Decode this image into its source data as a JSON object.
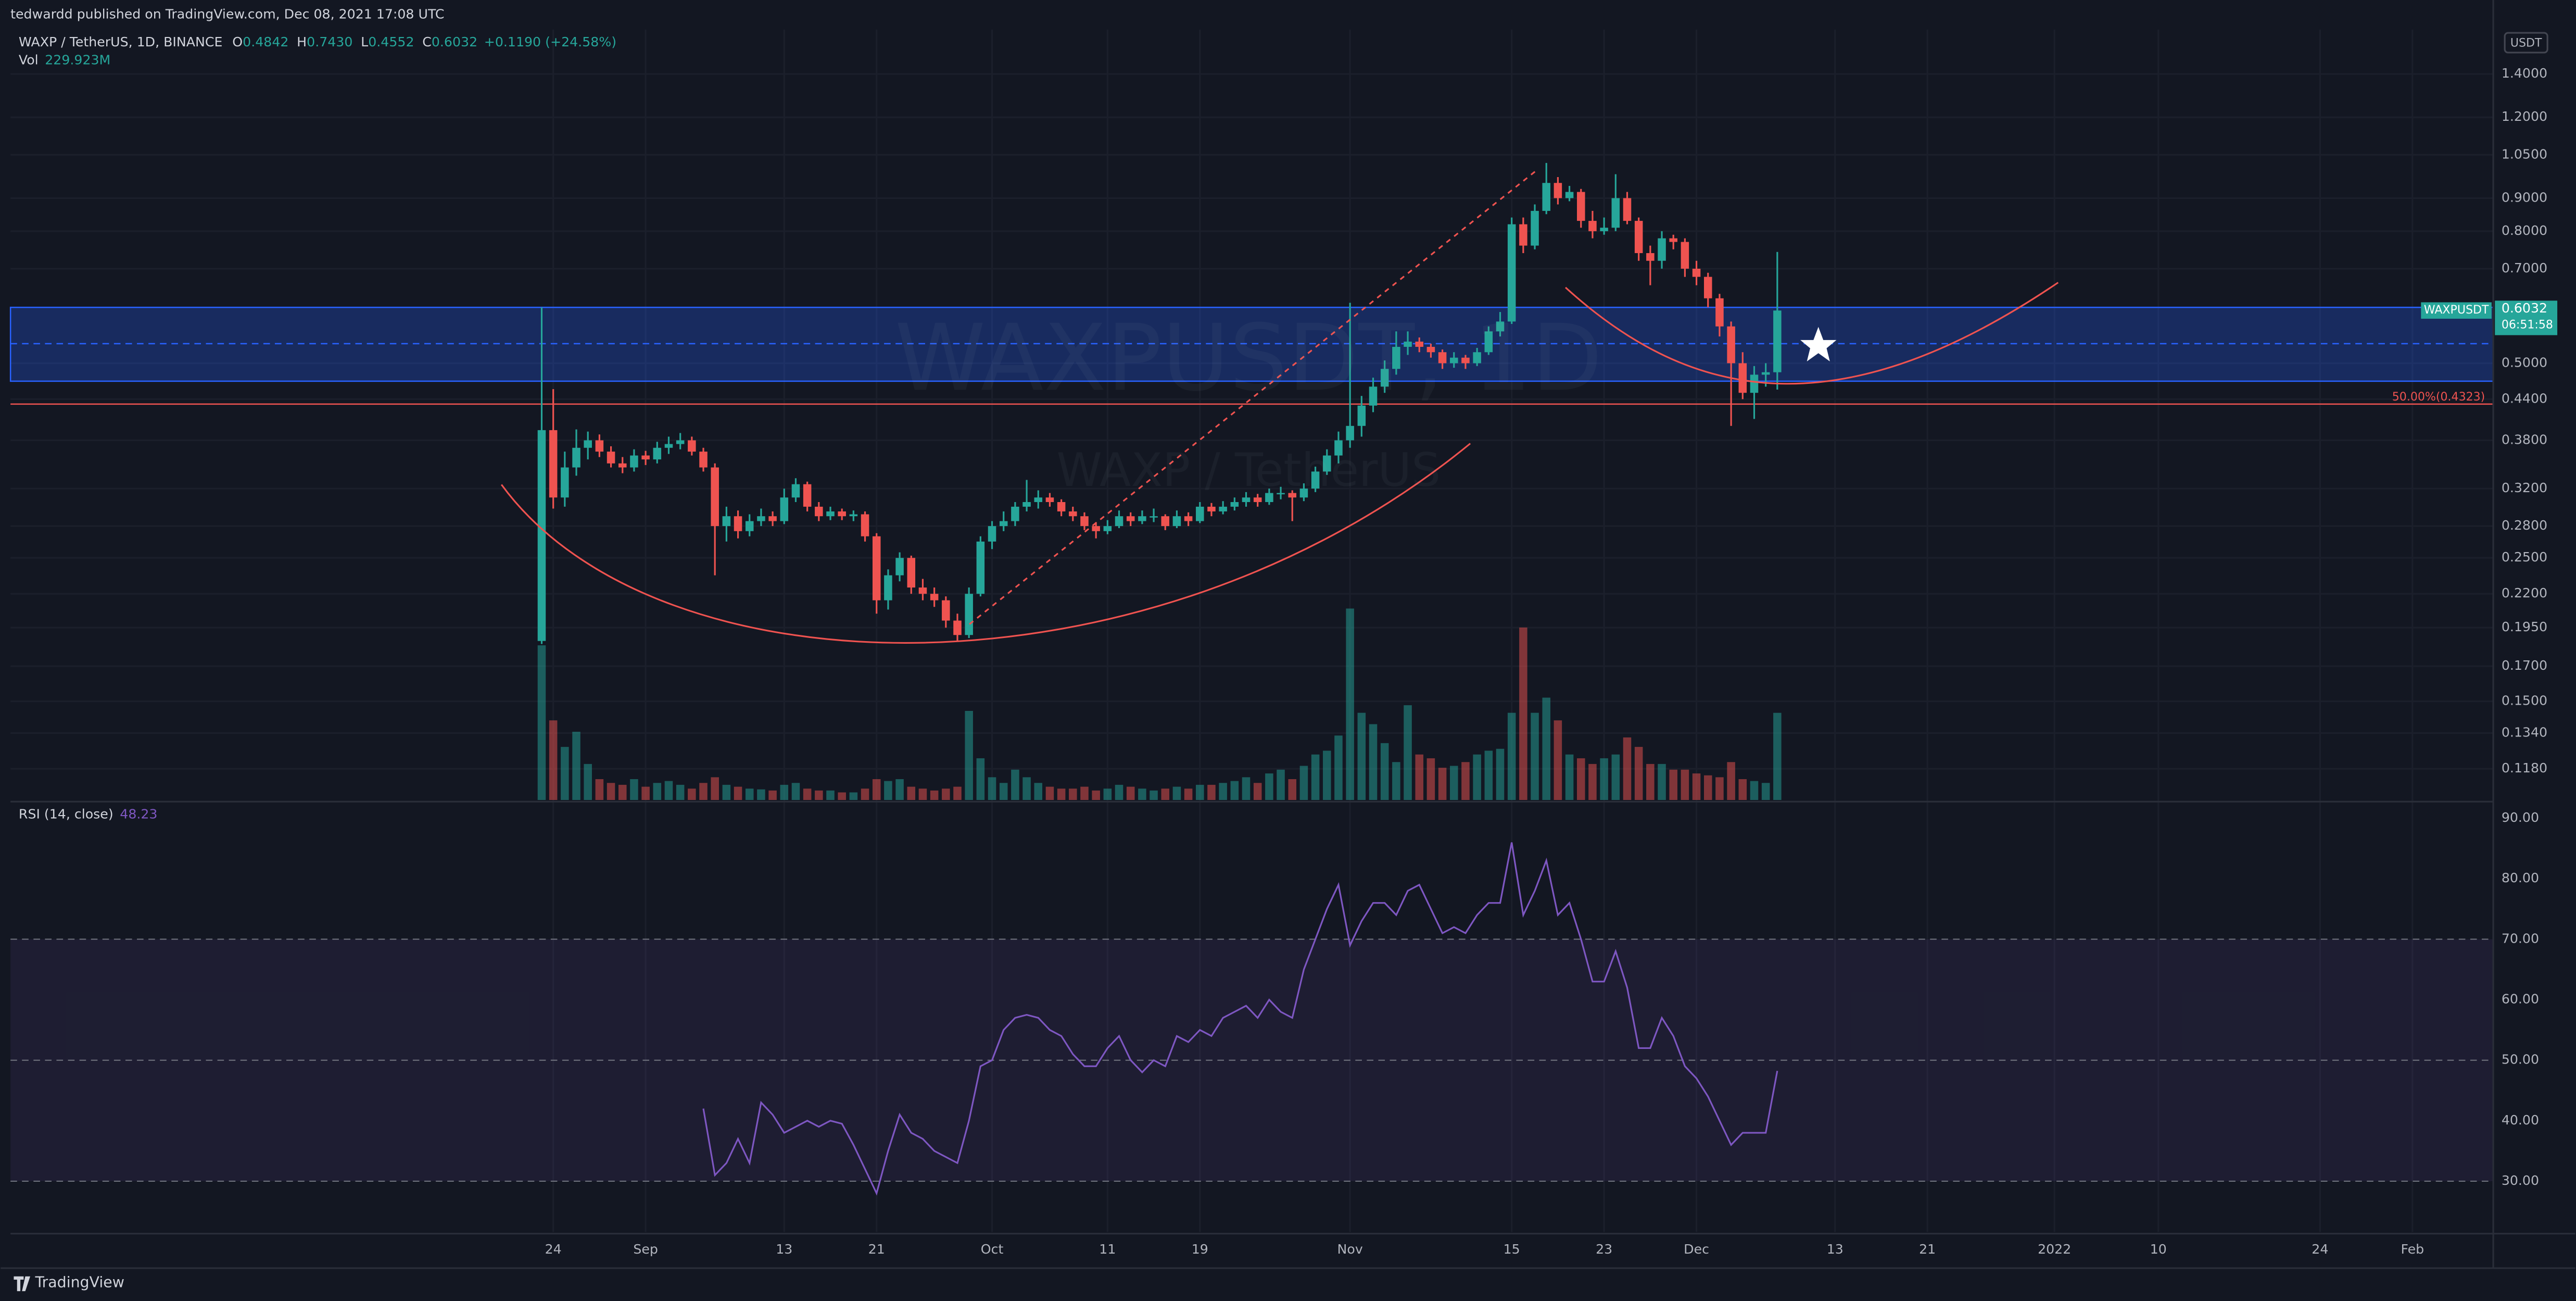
{
  "header": {
    "author": "tedwardd published on TradingView.com, Dec 08, 2021 17:08 UTC",
    "brand": "TradingView"
  },
  "chart_data": {
    "type": "candlestick",
    "title": "WAXP / TetherUS, 1D, BINANCE",
    "symbol": "WAXPUSDT",
    "watermark": "WAXPUSDT, 1D",
    "watermark_sub": "WAXP / TetherUS",
    "currency": "USDT",
    "countdown": "06:51:58",
    "ohlc_names": [
      "O",
      "H",
      "L",
      "C"
    ],
    "last_ohlc_labels": [
      "0.4842",
      "0.7430",
      "0.4552",
      "0.6032"
    ],
    "change": "+0.1190 (+24.58%)",
    "volume_name": "Vol",
    "volume_last_label": "229.923M",
    "rsi_name": "RSI (14, close)",
    "up_color": "#26a69a",
    "down_color": "#ef5350",
    "rsi_color": "#7e57c2",
    "log": true,
    "grid": true,
    "x": [
      "2021-08-23",
      "2021-08-24",
      "2021-08-25",
      "2021-08-26",
      "2021-08-27",
      "2021-08-28",
      "2021-08-29",
      "2021-08-30",
      "2021-08-31",
      "2021-09-01",
      "2021-09-02",
      "2021-09-03",
      "2021-09-04",
      "2021-09-05",
      "2021-09-06",
      "2021-09-07",
      "2021-09-08",
      "2021-09-09",
      "2021-09-10",
      "2021-09-11",
      "2021-09-12",
      "2021-09-13",
      "2021-09-14",
      "2021-09-15",
      "2021-09-16",
      "2021-09-17",
      "2021-09-18",
      "2021-09-19",
      "2021-09-20",
      "2021-09-21",
      "2021-09-22",
      "2021-09-23",
      "2021-09-24",
      "2021-09-25",
      "2021-09-26",
      "2021-09-27",
      "2021-09-28",
      "2021-09-29",
      "2021-09-30",
      "2021-10-01",
      "2021-10-02",
      "2021-10-03",
      "2021-10-04",
      "2021-10-05",
      "2021-10-06",
      "2021-10-07",
      "2021-10-08",
      "2021-10-09",
      "2021-10-10",
      "2021-10-11",
      "2021-10-12",
      "2021-10-13",
      "2021-10-14",
      "2021-10-15",
      "2021-10-16",
      "2021-10-17",
      "2021-10-18",
      "2021-10-19",
      "2021-10-20",
      "2021-10-21",
      "2021-10-22",
      "2021-10-23",
      "2021-10-24",
      "2021-10-25",
      "2021-10-26",
      "2021-10-27",
      "2021-10-28",
      "2021-10-29",
      "2021-10-30",
      "2021-10-31",
      "2021-11-01",
      "2021-11-02",
      "2021-11-03",
      "2021-11-04",
      "2021-11-05",
      "2021-11-06",
      "2021-11-07",
      "2021-11-08",
      "2021-11-09",
      "2021-11-10",
      "2021-11-11",
      "2021-11-12",
      "2021-11-13",
      "2021-11-14",
      "2021-11-15",
      "2021-11-16",
      "2021-11-17",
      "2021-11-18",
      "2021-11-19",
      "2021-11-20",
      "2021-11-21",
      "2021-11-22",
      "2021-11-23",
      "2021-11-24",
      "2021-11-25",
      "2021-11-26",
      "2021-11-27",
      "2021-11-28",
      "2021-11-29",
      "2021-11-30",
      "2021-12-01",
      "2021-12-02",
      "2021-12-03",
      "2021-12-04",
      "2021-12-05",
      "2021-12-06",
      "2021-12-07",
      "2021-12-08"
    ],
    "ohlc": [
      [
        0.186,
        0.61,
        0.184,
        0.394
      ],
      [
        0.394,
        0.456,
        0.298,
        0.31
      ],
      [
        0.31,
        0.365,
        0.3,
        0.345
      ],
      [
        0.345,
        0.395,
        0.335,
        0.37
      ],
      [
        0.37,
        0.392,
        0.355,
        0.38
      ],
      [
        0.38,
        0.388,
        0.358,
        0.365
      ],
      [
        0.365,
        0.372,
        0.345,
        0.35
      ],
      [
        0.35,
        0.358,
        0.338,
        0.345
      ],
      [
        0.345,
        0.368,
        0.34,
        0.36
      ],
      [
        0.36,
        0.366,
        0.348,
        0.355
      ],
      [
        0.355,
        0.378,
        0.35,
        0.37
      ],
      [
        0.37,
        0.385,
        0.362,
        0.375
      ],
      [
        0.375,
        0.39,
        0.368,
        0.38
      ],
      [
        0.38,
        0.385,
        0.36,
        0.365
      ],
      [
        0.365,
        0.37,
        0.34,
        0.345
      ],
      [
        0.345,
        0.35,
        0.235,
        0.28
      ],
      [
        0.28,
        0.3,
        0.265,
        0.29
      ],
      [
        0.29,
        0.296,
        0.268,
        0.275
      ],
      [
        0.275,
        0.292,
        0.27,
        0.285
      ],
      [
        0.285,
        0.298,
        0.28,
        0.29
      ],
      [
        0.29,
        0.295,
        0.28,
        0.285
      ],
      [
        0.285,
        0.32,
        0.282,
        0.31
      ],
      [
        0.31,
        0.332,
        0.305,
        0.325
      ],
      [
        0.325,
        0.328,
        0.295,
        0.3
      ],
      [
        0.3,
        0.305,
        0.285,
        0.29
      ],
      [
        0.29,
        0.3,
        0.286,
        0.295
      ],
      [
        0.295,
        0.298,
        0.286,
        0.29
      ],
      [
        0.29,
        0.296,
        0.285,
        0.292
      ],
      [
        0.292,
        0.295,
        0.265,
        0.27
      ],
      [
        0.27,
        0.273,
        0.205,
        0.215
      ],
      [
        0.215,
        0.24,
        0.208,
        0.235
      ],
      [
        0.235,
        0.255,
        0.23,
        0.25
      ],
      [
        0.25,
        0.252,
        0.22,
        0.225
      ],
      [
        0.225,
        0.232,
        0.215,
        0.22
      ],
      [
        0.22,
        0.225,
        0.21,
        0.215
      ],
      [
        0.215,
        0.218,
        0.195,
        0.2
      ],
      [
        0.2,
        0.205,
        0.186,
        0.19
      ],
      [
        0.19,
        0.225,
        0.188,
        0.22
      ],
      [
        0.22,
        0.27,
        0.218,
        0.265
      ],
      [
        0.265,
        0.285,
        0.258,
        0.28
      ],
      [
        0.28,
        0.295,
        0.275,
        0.285
      ],
      [
        0.285,
        0.305,
        0.28,
        0.3
      ],
      [
        0.3,
        0.33,
        0.295,
        0.305
      ],
      [
        0.305,
        0.318,
        0.298,
        0.31
      ],
      [
        0.31,
        0.315,
        0.3,
        0.305
      ],
      [
        0.305,
        0.308,
        0.29,
        0.295
      ],
      [
        0.295,
        0.3,
        0.285,
        0.29
      ],
      [
        0.29,
        0.294,
        0.276,
        0.28
      ],
      [
        0.28,
        0.284,
        0.268,
        0.275
      ],
      [
        0.275,
        0.286,
        0.272,
        0.28
      ],
      [
        0.28,
        0.296,
        0.278,
        0.29
      ],
      [
        0.29,
        0.294,
        0.28,
        0.285
      ],
      [
        0.285,
        0.296,
        0.282,
        0.29
      ],
      [
        0.29,
        0.298,
        0.284,
        0.29
      ],
      [
        0.29,
        0.292,
        0.276,
        0.28
      ],
      [
        0.28,
        0.296,
        0.278,
        0.29
      ],
      [
        0.29,
        0.294,
        0.28,
        0.285
      ],
      [
        0.285,
        0.305,
        0.283,
        0.3
      ],
      [
        0.3,
        0.304,
        0.29,
        0.295
      ],
      [
        0.295,
        0.306,
        0.292,
        0.3
      ],
      [
        0.3,
        0.31,
        0.296,
        0.305
      ],
      [
        0.305,
        0.316,
        0.3,
        0.31
      ],
      [
        0.31,
        0.314,
        0.3,
        0.305
      ],
      [
        0.305,
        0.32,
        0.302,
        0.315
      ],
      [
        0.315,
        0.322,
        0.308,
        0.315
      ],
      [
        0.315,
        0.318,
        0.285,
        0.31
      ],
      [
        0.31,
        0.326,
        0.306,
        0.32
      ],
      [
        0.32,
        0.346,
        0.316,
        0.34
      ],
      [
        0.34,
        0.368,
        0.336,
        0.36
      ],
      [
        0.36,
        0.392,
        0.35,
        0.38
      ],
      [
        0.38,
        0.62,
        0.37,
        0.4
      ],
      [
        0.4,
        0.445,
        0.385,
        0.43
      ],
      [
        0.43,
        0.475,
        0.42,
        0.46
      ],
      [
        0.46,
        0.505,
        0.45,
        0.49
      ],
      [
        0.49,
        0.56,
        0.48,
        0.53
      ],
      [
        0.53,
        0.56,
        0.515,
        0.54
      ],
      [
        0.54,
        0.548,
        0.52,
        0.53
      ],
      [
        0.53,
        0.536,
        0.51,
        0.52
      ],
      [
        0.52,
        0.525,
        0.49,
        0.5
      ],
      [
        0.5,
        0.52,
        0.492,
        0.51
      ],
      [
        0.51,
        0.515,
        0.49,
        0.5
      ],
      [
        0.5,
        0.528,
        0.495,
        0.52
      ],
      [
        0.52,
        0.57,
        0.515,
        0.56
      ],
      [
        0.56,
        0.6,
        0.55,
        0.58
      ],
      [
        0.58,
        0.84,
        0.575,
        0.82
      ],
      [
        0.82,
        0.84,
        0.74,
        0.76
      ],
      [
        0.76,
        0.88,
        0.75,
        0.86
      ],
      [
        0.86,
        1.02,
        0.85,
        0.95
      ],
      [
        0.95,
        0.97,
        0.88,
        0.9
      ],
      [
        0.9,
        0.94,
        0.89,
        0.92
      ],
      [
        0.92,
        0.93,
        0.81,
        0.83
      ],
      [
        0.83,
        0.86,
        0.78,
        0.8
      ],
      [
        0.8,
        0.84,
        0.79,
        0.81
      ],
      [
        0.81,
        0.98,
        0.8,
        0.9
      ],
      [
        0.9,
        0.92,
        0.82,
        0.83
      ],
      [
        0.83,
        0.84,
        0.72,
        0.74
      ],
      [
        0.74,
        0.76,
        0.66,
        0.72
      ],
      [
        0.72,
        0.8,
        0.7,
        0.78
      ],
      [
        0.78,
        0.79,
        0.75,
        0.77
      ],
      [
        0.77,
        0.78,
        0.68,
        0.7
      ],
      [
        0.7,
        0.72,
        0.66,
        0.68
      ],
      [
        0.68,
        0.69,
        0.61,
        0.63
      ],
      [
        0.63,
        0.64,
        0.55,
        0.57
      ],
      [
        0.57,
        0.58,
        0.4,
        0.5
      ],
      [
        0.5,
        0.52,
        0.44,
        0.45
      ],
      [
        0.45,
        0.495,
        0.41,
        0.48
      ],
      [
        0.48,
        0.5,
        0.46,
        0.4842
      ],
      [
        0.4842,
        0.743,
        0.4552,
        0.6032
      ]
    ],
    "volume": [
      408,
      210,
      140,
      180,
      95,
      55,
      45,
      40,
      55,
      35,
      45,
      50,
      40,
      30,
      45,
      60,
      40,
      35,
      30,
      28,
      25,
      40,
      45,
      30,
      25,
      25,
      20,
      20,
      30,
      55,
      50,
      55,
      35,
      30,
      25,
      30,
      35,
      235,
      110,
      60,
      45,
      80,
      60,
      45,
      35,
      30,
      30,
      35,
      25,
      30,
      40,
      35,
      30,
      25,
      30,
      35,
      30,
      40,
      40,
      45,
      50,
      60,
      45,
      70,
      80,
      55,
      90,
      120,
      130,
      170,
      505,
      230,
      200,
      150,
      100,
      250,
      120,
      110,
      85,
      90,
      100,
      120,
      130,
      135,
      230,
      455,
      230,
      270,
      210,
      120,
      110,
      95,
      110,
      120,
      165,
      140,
      95,
      95,
      80,
      80,
      70,
      65,
      60,
      100,
      55,
      50,
      45,
      229.923
    ],
    "vlim": [
      0,
      520
    ],
    "rsi": [
      null,
      null,
      null,
      null,
      null,
      null,
      null,
      null,
      null,
      null,
      null,
      null,
      null,
      null,
      42,
      31,
      33,
      37,
      33,
      43,
      41,
      38,
      39,
      40,
      39,
      40,
      39.5,
      36,
      32,
      28,
      35,
      41,
      38,
      37,
      35,
      34,
      33,
      40,
      49,
      50,
      55,
      57,
      57.5,
      57,
      55,
      54,
      51,
      49,
      49,
      52,
      54,
      50,
      48,
      50,
      49,
      54,
      53,
      55,
      54,
      57,
      58,
      59,
      57,
      60,
      58,
      57,
      65,
      70,
      75,
      79,
      69,
      73,
      76,
      76,
      74,
      78,
      79,
      75,
      71,
      72,
      71,
      74,
      76,
      76,
      86,
      74,
      78,
      83,
      74,
      76,
      70,
      63,
      63,
      68,
      62,
      52,
      52,
      57,
      54,
      49,
      47,
      44,
      40,
      36,
      38,
      38,
      38,
      48.23
    ],
    "rsi_band": [
      30,
      70
    ],
    "rsi_midline": 50,
    "zone": {
      "top": 0.61,
      "bottom": 0.469,
      "mid": 0.536
    },
    "fib": {
      "value": 0.4323,
      "label": "50.00%(0.4323)"
    },
    "xlim": [
      "2021-07-08",
      "2022-02-08"
    ],
    "xticks": [
      {
        "value": "2021-08-24",
        "label": "24"
      },
      {
        "value": "2021-09-01",
        "label": "Sep"
      },
      {
        "value": "2021-09-13",
        "label": "13"
      },
      {
        "value": "2021-09-21",
        "label": "21"
      },
      {
        "value": "2021-10-01",
        "label": "Oct"
      },
      {
        "value": "2021-10-11",
        "label": "11"
      },
      {
        "value": "2021-10-19",
        "label": "19"
      },
      {
        "value": "2021-11-01",
        "label": "Nov"
      },
      {
        "value": "2021-11-15",
        "label": "15"
      },
      {
        "value": "2021-11-23",
        "label": "23"
      },
      {
        "value": "2021-12-01",
        "label": "Dec"
      },
      {
        "value": "2021-12-13",
        "label": "13"
      },
      {
        "value": "2021-12-21",
        "label": "21"
      },
      {
        "value": "2022-01-01",
        "label": "2022"
      },
      {
        "value": "2022-01-10",
        "label": "10"
      },
      {
        "value": "2022-01-24",
        "label": "24"
      },
      {
        "value": "2022-02-01",
        "label": "Feb"
      }
    ],
    "ylim": [
      0.1056,
      1.64
    ],
    "yticks": [
      {
        "value": 0.118,
        "label": "0.1180"
      },
      {
        "value": 0.134,
        "label": "0.1340"
      },
      {
        "value": 0.15,
        "label": "0.1500"
      },
      {
        "value": 0.17,
        "label": "0.1700"
      },
      {
        "value": 0.195,
        "label": "0.1950"
      },
      {
        "value": 0.22,
        "label": "0.2200"
      },
      {
        "value": 0.25,
        "label": "0.2500"
      },
      {
        "value": 0.28,
        "label": "0.2800"
      },
      {
        "value": 0.32,
        "label": "0.3200"
      },
      {
        "value": 0.38,
        "label": "0.3800"
      },
      {
        "value": 0.44,
        "label": "0.4400"
      },
      {
        "value": 0.5,
        "label": "0.5000"
      },
      {
        "value": 0.7,
        "label": "0.7000"
      },
      {
        "value": 0.8,
        "label": "0.8000"
      },
      {
        "value": 0.9,
        "label": "0.9000"
      },
      {
        "value": 1.05,
        "label": "1.0500"
      },
      {
        "value": 1.2,
        "label": "1.2000"
      },
      {
        "value": 1.4,
        "label": "1.4000"
      }
    ],
    "rsilim": [
      21.6,
      92.2
    ],
    "rsiticks": [
      {
        "value": 30,
        "label": "30.00"
      },
      {
        "value": 40,
        "label": "40.00"
      },
      {
        "value": 50,
        "label": "50.00"
      },
      {
        "value": 60,
        "label": "60.00"
      },
      {
        "value": 70,
        "label": "70.00"
      },
      {
        "value": 80,
        "label": "80.00"
      },
      {
        "value": 90,
        "label": "90.00"
      }
    ]
  }
}
